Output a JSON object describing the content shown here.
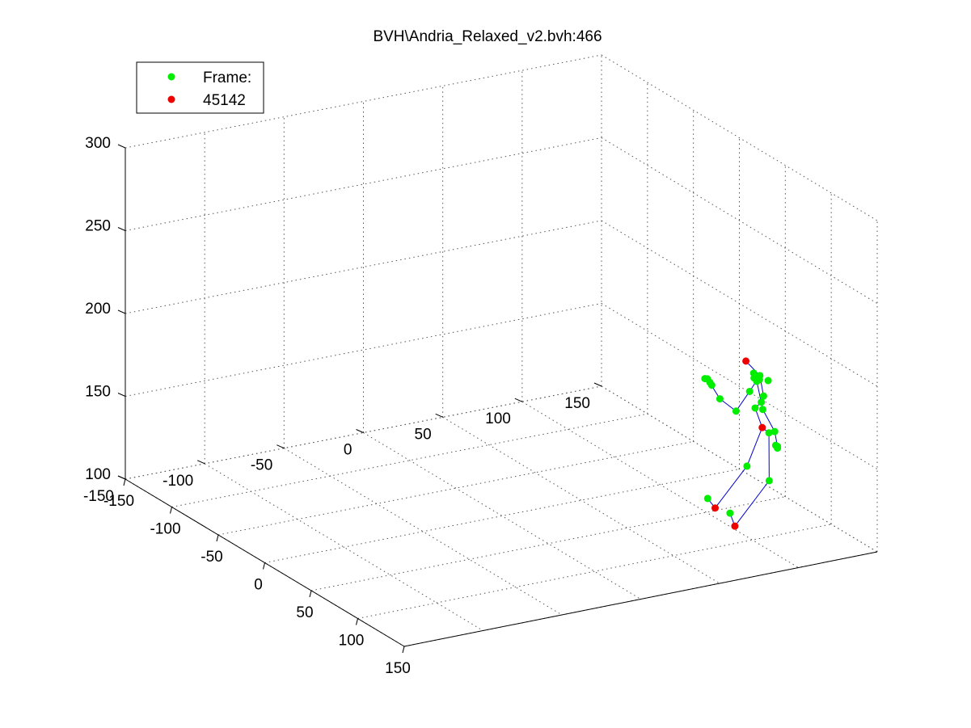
{
  "chart_data": {
    "type": "scatter",
    "projection": "3d",
    "title": "BVH\\Andria_Relaxed_v2.bvh:466",
    "grid": true,
    "box": false,
    "legend_placement": "top-left",
    "legend": [
      "Frame:",
      "45142"
    ],
    "xlim": [
      -150,
      150
    ],
    "ylim": [
      -150,
      150
    ],
    "zlim": [
      100,
      300
    ],
    "x_ticks": [
      "-150",
      "-100",
      "-50",
      "0",
      "50",
      "100",
      "150"
    ],
    "y_ticks": [
      "-150",
      "-100",
      "-50",
      "0",
      "50",
      "100",
      "150"
    ],
    "z_ticks": [
      "100",
      "150",
      "200",
      "250",
      "300"
    ],
    "colors": {
      "joints": "#00ee00",
      "end_sites": "#ee0000",
      "bones": "#0000cc",
      "grid": "#555555"
    },
    "series": [
      {
        "name": "Frame:",
        "color": "#00ee00",
        "points": [
          [
            36,
            109,
            102
          ],
          [
            62,
            108,
            102
          ],
          [
            77,
            110,
            135
          ],
          [
            96,
            113,
            132
          ],
          [
            94,
            114,
            160
          ],
          [
            79,
            114,
            170
          ],
          [
            84,
            115,
            175
          ],
          [
            83,
            117,
            178
          ],
          [
            74,
            116,
            189
          ],
          [
            79,
            117,
            189
          ],
          [
            88,
            117,
            189
          ],
          [
            82,
            115,
            188
          ],
          [
            83,
            111,
            190
          ],
          [
            86,
            111,
            189
          ],
          [
            101,
            106,
            178
          ],
          [
            114,
            106,
            169
          ],
          [
            117,
            106,
            161
          ],
          [
            115,
            106,
            161
          ],
          [
            117,
            106,
            160
          ],
          [
            73,
            114,
            178
          ],
          [
            60,
            113,
            162
          ],
          [
            39,
            115,
            162
          ],
          [
            22,
            117,
            168
          ],
          [
            23,
            118,
            166
          ],
          [
            25,
            118,
            165
          ],
          [
            21,
            116,
            168
          ]
        ]
      },
      {
        "name": "45142",
        "color": "#ee0000",
        "points": [
          [
            51,
            105,
            102
          ],
          [
            85,
            115,
            160
          ],
          [
            69,
            114,
            195
          ],
          [
            81,
            100,
            102
          ]
        ]
      }
    ],
    "bones": [
      [
        [
          51,
          105,
          102
        ],
        [
          36,
          109,
          102
        ]
      ],
      [
        [
          51,
          105,
          102
        ],
        [
          77,
          110,
          135
        ]
      ],
      [
        [
          77,
          110,
          135
        ],
        [
          85,
          115,
          160
        ]
      ],
      [
        [
          85,
          115,
          160
        ],
        [
          94,
          114,
          160
        ]
      ],
      [
        [
          94,
          114,
          160
        ],
        [
          96,
          113,
          132
        ]
      ],
      [
        [
          96,
          113,
          132
        ],
        [
          81,
          100,
          102
        ]
      ],
      [
        [
          81,
          100,
          102
        ],
        [
          62,
          108,
          102
        ]
      ],
      [
        [
          85,
          115,
          160
        ],
        [
          79,
          114,
          170
        ]
      ],
      [
        [
          79,
          114,
          170
        ],
        [
          84,
          115,
          175
        ]
      ],
      [
        [
          84,
          115,
          175
        ],
        [
          83,
          117,
          178
        ]
      ],
      [
        [
          83,
          117,
          178
        ],
        [
          79,
          117,
          189
        ]
      ],
      [
        [
          79,
          117,
          189
        ],
        [
          69,
          114,
          195
        ]
      ],
      [
        [
          79,
          117,
          189
        ],
        [
          86,
          111,
          189
        ]
      ],
      [
        [
          86,
          111,
          189
        ],
        [
          101,
          106,
          178
        ]
      ],
      [
        [
          101,
          106,
          178
        ],
        [
          114,
          106,
          169
        ]
      ],
      [
        [
          114,
          106,
          169
        ],
        [
          117,
          106,
          161
        ]
      ],
      [
        [
          79,
          117,
          189
        ],
        [
          73,
          114,
          178
        ]
      ],
      [
        [
          73,
          114,
          178
        ],
        [
          60,
          113,
          162
        ]
      ],
      [
        [
          60,
          113,
          162
        ],
        [
          39,
          115,
          162
        ]
      ],
      [
        [
          39,
          115,
          162
        ],
        [
          22,
          117,
          168
        ]
      ]
    ]
  }
}
